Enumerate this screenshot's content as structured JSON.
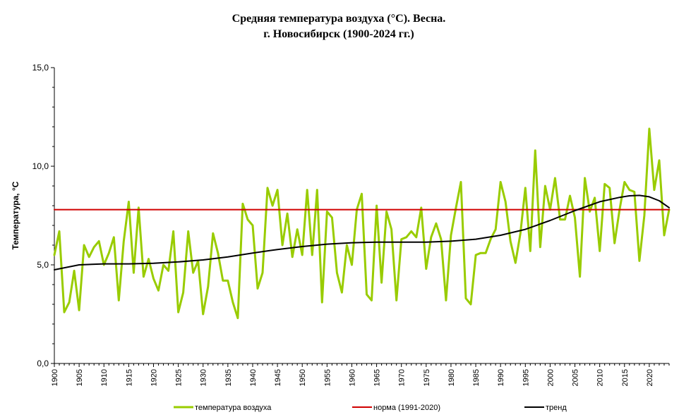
{
  "chart_data": {
    "type": "line",
    "title_line1": "Средняя температура воздуха (°С). Весна.",
    "title_line2": "г. Новосибирск (1900-2024 гг.)",
    "ylabel": "Температура, °С",
    "xlabel": "",
    "ylim": [
      0,
      15
    ],
    "xlim": [
      1900,
      2024
    ],
    "y_ticks": [
      "0,0",
      "5,0",
      "10,0",
      "15,0"
    ],
    "x_tick_years": [
      1900,
      1905,
      1910,
      1915,
      1920,
      1925,
      1930,
      1935,
      1940,
      1945,
      1950,
      1955,
      1960,
      1965,
      1970,
      1975,
      1980,
      1985,
      1990,
      1995,
      2000,
      2005,
      2010,
      2015,
      2020
    ],
    "grid": false,
    "legend_position": "bottom",
    "series": [
      {
        "name": "температура воздуха",
        "color": "#99cc00",
        "x": [
          1900,
          1901,
          1902,
          1903,
          1904,
          1905,
          1906,
          1907,
          1908,
          1909,
          1910,
          1911,
          1912,
          1913,
          1914,
          1915,
          1916,
          1917,
          1918,
          1919,
          1920,
          1921,
          1922,
          1923,
          1924,
          1925,
          1926,
          1927,
          1928,
          1929,
          1930,
          1931,
          1932,
          1933,
          1934,
          1935,
          1936,
          1937,
          1938,
          1939,
          1940,
          1941,
          1942,
          1943,
          1944,
          1945,
          1946,
          1947,
          1948,
          1949,
          1950,
          1951,
          1952,
          1953,
          1954,
          1955,
          1956,
          1957,
          1958,
          1959,
          1960,
          1961,
          1962,
          1963,
          1964,
          1965,
          1966,
          1967,
          1968,
          1969,
          1970,
          1971,
          1972,
          1973,
          1974,
          1975,
          1976,
          1977,
          1978,
          1979,
          1980,
          1981,
          1982,
          1983,
          1984,
          1985,
          1986,
          1987,
          1988,
          1989,
          1990,
          1991,
          1992,
          1993,
          1994,
          1995,
          1996,
          1997,
          1998,
          1999,
          2000,
          2001,
          2002,
          2003,
          2004,
          2005,
          2006,
          2007,
          2008,
          2009,
          2010,
          2011,
          2012,
          2013,
          2014,
          2015,
          2016,
          2017,
          2018,
          2019,
          2020,
          2021,
          2022,
          2023,
          2024
        ],
        "values": [
          5.5,
          6.7,
          2.6,
          3.1,
          4.7,
          2.7,
          6.0,
          5.4,
          5.9,
          6.2,
          5.0,
          5.6,
          6.4,
          3.2,
          6.2,
          8.2,
          4.6,
          7.9,
          4.4,
          5.3,
          4.3,
          3.7,
          5.0,
          4.7,
          6.7,
          2.6,
          3.6,
          6.7,
          4.6,
          5.2,
          2.5,
          3.9,
          6.6,
          5.6,
          4.2,
          4.2,
          3.1,
          2.3,
          8.1,
          7.3,
          7.0,
          3.8,
          4.6,
          8.9,
          8.0,
          8.8,
          6.0,
          7.6,
          5.4,
          6.8,
          5.5,
          8.8,
          5.5,
          8.8,
          3.1,
          7.7,
          7.4,
          4.6,
          3.6,
          6.0,
          5.0,
          7.8,
          8.6,
          3.5,
          3.2,
          8.0,
          4.1,
          7.7,
          6.8,
          3.2,
          6.3,
          6.4,
          6.7,
          6.4,
          7.9,
          4.8,
          6.4,
          7.1,
          6.3,
          3.2,
          6.5,
          7.9,
          9.2,
          3.3,
          3.0,
          5.5,
          5.6,
          5.6,
          6.3,
          6.8,
          9.2,
          8.2,
          6.2,
          5.1,
          6.6,
          8.9,
          5.7,
          10.8,
          5.9,
          9.0,
          7.8,
          9.4,
          7.3,
          7.3,
          8.5,
          7.4,
          4.4,
          9.4,
          7.7,
          8.4,
          5.7,
          9.1,
          8.9,
          6.1,
          7.8,
          9.2,
          8.8,
          8.7,
          5.2,
          7.5,
          11.9,
          8.8,
          10.3,
          6.5,
          7.8
        ]
      },
      {
        "name": "норма (1991-2020)",
        "color": "#d00000",
        "x": [
          1900,
          2024
        ],
        "values": [
          7.8,
          7.8
        ]
      },
      {
        "name": "тренд",
        "color": "#000000",
        "x": [
          1900,
          1905,
          1910,
          1915,
          1920,
          1925,
          1930,
          1935,
          1940,
          1945,
          1950,
          1955,
          1960,
          1965,
          1970,
          1975,
          1980,
          1985,
          1990,
          1995,
          2000,
          2005,
          2010,
          2014,
          2016,
          2018,
          2020,
          2022,
          2024
        ],
        "values": [
          4.75,
          5.0,
          5.05,
          5.05,
          5.08,
          5.15,
          5.25,
          5.4,
          5.6,
          5.78,
          5.93,
          6.05,
          6.12,
          6.15,
          6.15,
          6.15,
          6.2,
          6.3,
          6.5,
          6.8,
          7.25,
          7.75,
          8.2,
          8.42,
          8.5,
          8.52,
          8.45,
          8.25,
          7.9
        ]
      }
    ]
  }
}
